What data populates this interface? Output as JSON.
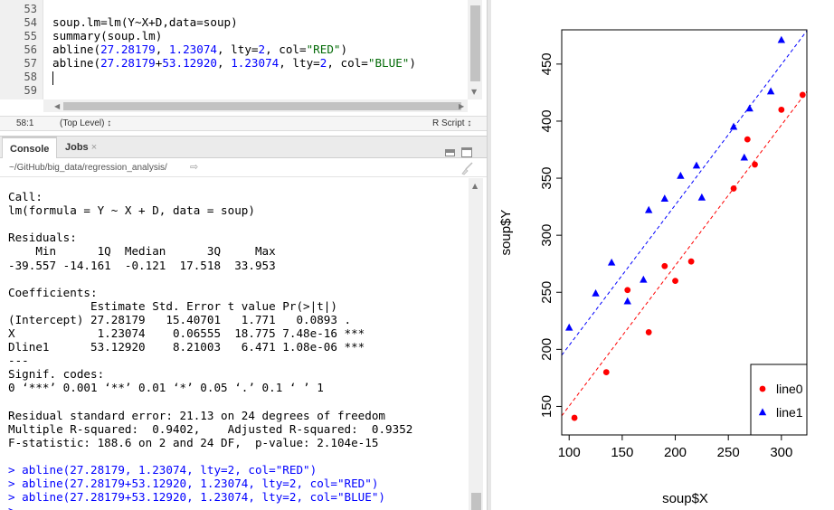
{
  "editor": {
    "line_numbers": [
      "53",
      "54",
      "55",
      "56",
      "57",
      "58",
      "59"
    ],
    "lines": [
      "",
      "soup.lm=lm(Y~X+D,data=soup)",
      "summary(soup.lm)",
      "abline(27.28179, 1.23074, lty=2, col=\"RED\")",
      "abline(27.28179+53.12920, 1.23074, lty=2, col=\"BLUE\")",
      "",
      ""
    ],
    "line56": {
      "pre": "abline(",
      "n1": "27.28179",
      "c1": ", ",
      "n2": "1.23074",
      "c2": ", lty=",
      "n3": "2",
      "c3": ", col=",
      "s1": "\"RED\"",
      "post": ")"
    },
    "line57": {
      "pre": "abline(",
      "n1": "27.28179",
      "c0": "+",
      "n0": "53.12920",
      "c1": ", ",
      "n2": "1.23074",
      "c2": ", lty=",
      "n3": "2",
      "c3": ", col=",
      "s1": "\"BLUE\"",
      "post": ")"
    },
    "line54": {
      "pre": "soup.lm=lm(Y~X+D,data=soup)"
    },
    "line55": {
      "pre": "summary(soup.lm)"
    }
  },
  "statusbar": {
    "position": "58:1",
    "scope": "(Top Level) ↕",
    "filetype": "R Script ↕"
  },
  "tabs": {
    "console": "Console",
    "jobs": "Jobs",
    "jobs_close": "×"
  },
  "console_path": {
    "path": "~/GitHub/big_data/regression_analysis/",
    "go_icon": "⇨"
  },
  "console": {
    "lines": [
      "Call:",
      "lm(formula = Y ~ X + D, data = soup)",
      "",
      "Residuals:",
      "    Min      1Q  Median      3Q     Max ",
      "-39.557 -14.161  -0.121  17.518  33.953 ",
      "",
      "Coefficients:",
      "            Estimate Std. Error t value Pr(>|t|)    ",
      "(Intercept) 27.28179   15.40701   1.771   0.0893 .  ",
      "X            1.23074    0.06555  18.775 7.48e-16 ***",
      "Dline1      53.12920    8.21003   6.471 1.08e-06 ***",
      "---",
      "Signif. codes:  ",
      "0 ‘***’ 0.001 ‘**’ 0.01 ‘*’ 0.05 ‘.’ 0.1 ‘ ’ 1",
      "",
      "Residual standard error: 21.13 on 24 degrees of freedom",
      "Multiple R-squared:  0.9402,\tAdjusted R-squared:  0.9352 ",
      "F-statistic: 188.6 on 2 and 24 DF,  p-value: 2.104e-15",
      ""
    ],
    "commands": [
      "> abline(27.28179, 1.23074, lty=2, col=\"RED\")",
      "> abline(27.28179+53.12920, 1.23074, lty=2, col=\"RED\")",
      "> abline(27.28179+53.12920, 1.23074, lty=2, col=\"BLUE\")",
      "> "
    ]
  },
  "chart_data": {
    "type": "scatter",
    "xlabel": "soup$X",
    "ylabel": "soup$Y",
    "xlim": [
      93,
      324
    ],
    "ylim": [
      125,
      480
    ],
    "x_ticks": [
      100,
      150,
      200,
      250,
      300
    ],
    "y_ticks": [
      150,
      200,
      250,
      300,
      350,
      400,
      450
    ],
    "legend_position": "bottom-right",
    "series": [
      {
        "name": "line0",
        "color": "#ff0000",
        "marker": "circle",
        "points": [
          [
            105,
            140
          ],
          [
            135,
            180
          ],
          [
            155,
            252
          ],
          [
            175,
            215
          ],
          [
            190,
            273
          ],
          [
            200,
            260
          ],
          [
            215,
            277
          ],
          [
            255,
            341
          ],
          [
            268,
            384
          ],
          [
            275,
            362
          ],
          [
            300,
            410
          ],
          [
            320,
            423
          ]
        ]
      },
      {
        "name": "line1",
        "color": "#0000ff",
        "marker": "triangle",
        "points": [
          [
            100,
            219
          ],
          [
            125,
            249
          ],
          [
            140,
            276
          ],
          [
            155,
            242
          ],
          [
            170,
            261
          ],
          [
            175,
            322
          ],
          [
            190,
            332
          ],
          [
            205,
            352
          ],
          [
            220,
            361
          ],
          [
            225,
            333
          ],
          [
            255,
            395
          ],
          [
            265,
            368
          ],
          [
            270,
            411
          ],
          [
            290,
            426
          ],
          [
            300,
            471
          ]
        ]
      }
    ],
    "lines": [
      {
        "intercept": 27.28179,
        "slope": 1.23074,
        "color": "#ff0000",
        "lty": "dashed"
      },
      {
        "intercept": 80.41099,
        "slope": 1.23074,
        "color": "#0000ff",
        "lty": "dashed"
      }
    ]
  }
}
